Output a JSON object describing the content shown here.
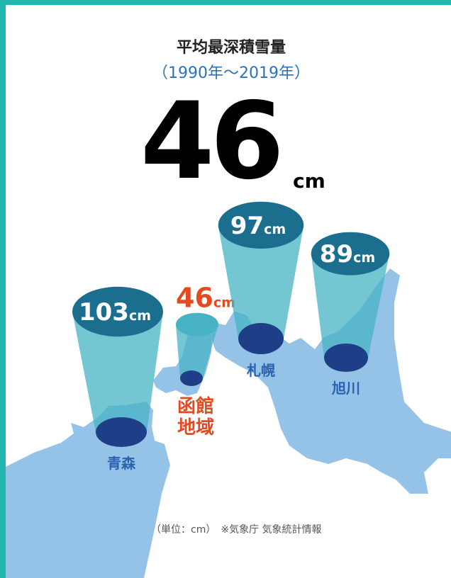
{
  "chart_data": {
    "type": "bar",
    "title": "平均最深積雪量",
    "subtitle": "（1990年〜2019年）",
    "headline": {
      "value": "46",
      "unit": "cm"
    },
    "unit": "cm",
    "categories": [
      "青森",
      "函館地域",
      "札幌",
      "旭川"
    ],
    "values": [
      103,
      46,
      97,
      89
    ],
    "highlight": "函館地域",
    "footnote": "（単位：cm）　※気象庁 気象統計情報"
  },
  "colors": {
    "frame": "#21b5ad",
    "map": "#95c3e8",
    "cylinder_top": "#1b6e8e",
    "cylinder_body": "#47b3c4",
    "cylinder_base": "#1e3f88",
    "city_label": "#2a62b0",
    "highlight": "#e24a22"
  }
}
